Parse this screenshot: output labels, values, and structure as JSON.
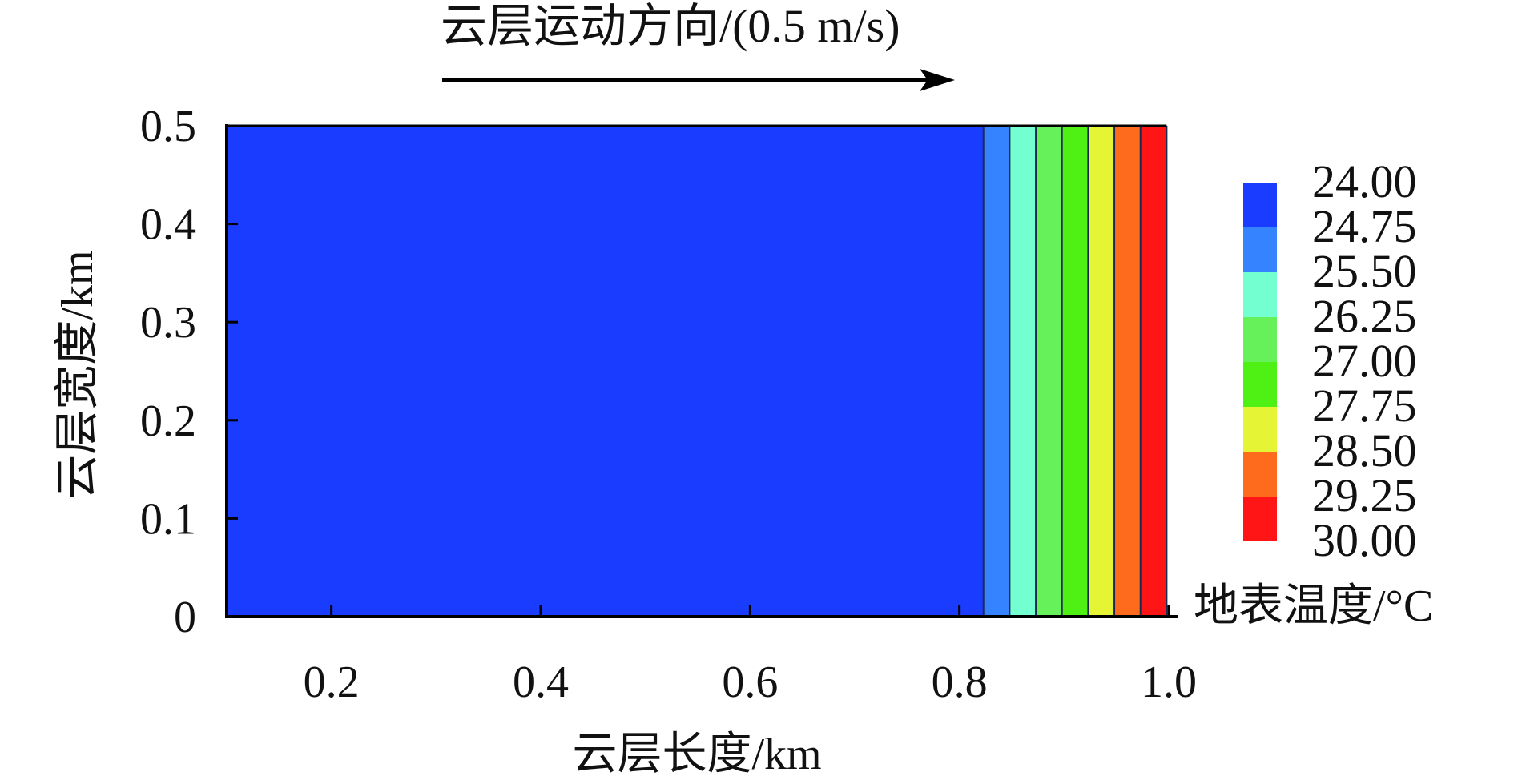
{
  "chart_data": {
    "type": "heatmap",
    "title": "",
    "annotation": "云层运动方向/(0.5 m/s)",
    "xlabel": "云层长度/km",
    "ylabel": "云层宽度/km",
    "xlim": [
      0.1,
      1.0
    ],
    "ylim": [
      0,
      0.5
    ],
    "x_ticks": [
      0.2,
      0.4,
      0.6,
      0.8,
      1.0
    ],
    "x_tick_labels": [
      "0.2",
      "0.4",
      "0.6",
      "0.8",
      "1.0"
    ],
    "y_ticks": [
      0,
      0.1,
      0.2,
      0.3,
      0.4,
      0.5
    ],
    "y_tick_labels": [
      "0",
      "0.1",
      "0.2",
      "0.3",
      "0.4",
      "0.5"
    ],
    "grid": false,
    "colorbar": {
      "title": "地表温度/°C",
      "levels": [
        24.0,
        24.75,
        25.5,
        26.25,
        27.0,
        27.75,
        28.5,
        29.25,
        30.0
      ],
      "labels": [
        "24.00",
        "24.75",
        "25.50",
        "26.25",
        "27.00",
        "27.75",
        "28.50",
        "29.25",
        "30.00"
      ],
      "colors": [
        "#1a3cff",
        "#3583ff",
        "#74ffd0",
        "#66f05a",
        "#4ff013",
        "#e5f536",
        "#fe6b1c",
        "#ff1515"
      ]
    },
    "bands": [
      {
        "x_start": 0.1,
        "x_end": 0.823,
        "level_index": 0
      },
      {
        "x_start": 0.823,
        "x_end": 0.848,
        "level_index": 1
      },
      {
        "x_start": 0.848,
        "x_end": 0.873,
        "level_index": 2
      },
      {
        "x_start": 0.873,
        "x_end": 0.898,
        "level_index": 3
      },
      {
        "x_start": 0.898,
        "x_end": 0.923,
        "level_index": 4
      },
      {
        "x_start": 0.923,
        "x_end": 0.948,
        "level_index": 5
      },
      {
        "x_start": 0.948,
        "x_end": 0.973,
        "level_index": 6
      },
      {
        "x_start": 0.973,
        "x_end": 0.998,
        "level_index": 7
      }
    ]
  }
}
